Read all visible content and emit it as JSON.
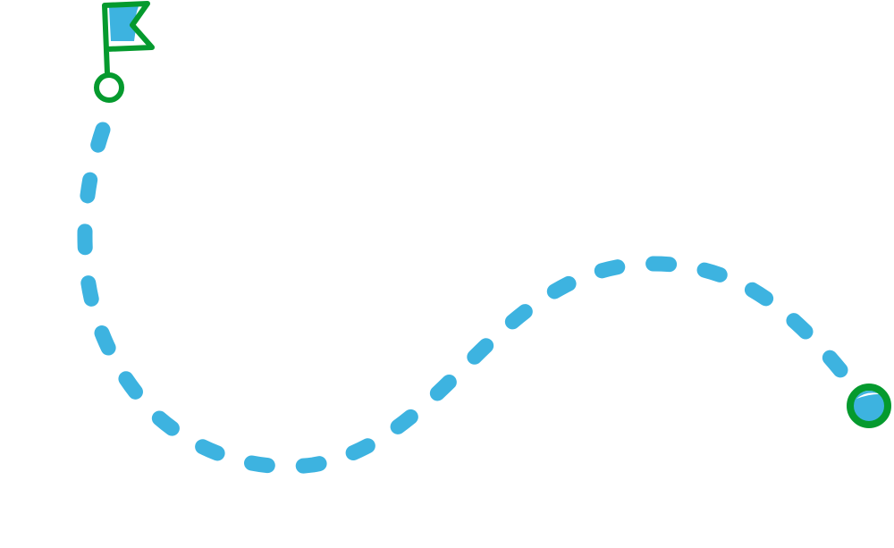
{
  "illustration": {
    "start_marker": "flag-icon",
    "end_marker": "target-circle-icon",
    "path_style": "dashed",
    "colors": {
      "path": "#3db3e0",
      "outline": "#059a2e",
      "background": "#ffffff"
    }
  }
}
